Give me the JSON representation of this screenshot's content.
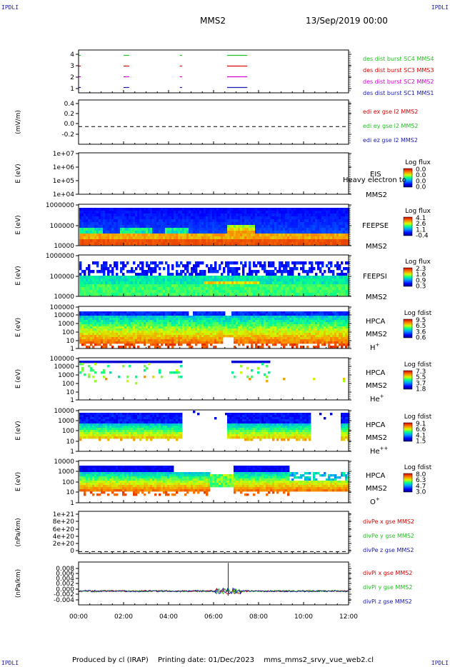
{
  "header": {
    "corner_tl": "IPDLI",
    "corner_tr": "IPDLI",
    "corner_bl": "IPDLI",
    "corner_br": "IPDLI",
    "spacecraft": "MMS2",
    "date": "13/Sep/2019 00:00"
  },
  "footer": {
    "produced": "Produced by cl (IRAP)",
    "printing": "Printing date: 01/Dec/2023",
    "file": "mms_mms2_srvy_vue_web2.cl"
  },
  "colors": {
    "red": "#d80000",
    "green": "#20c020",
    "blue": "#1818b0",
    "magenta": "#d000d0",
    "orange": "#ff5a00"
  },
  "chart_data": [
    {
      "type": "line",
      "panel": "burst",
      "yticks": [
        "4",
        "3",
        "2",
        "1"
      ],
      "ylim": [
        0.5,
        4.5
      ],
      "series": [
        {
          "name": "des dist burst SC1 MMS1",
          "color": "#1818b0",
          "y": 1
        },
        {
          "name": "des dist burst SC2 MMS2",
          "color": "#d000d0",
          "y": 2
        },
        {
          "name": "des dist burst SC3 MMS3",
          "color": "#d80000",
          "y": 3
        },
        {
          "name": "des dist burst SC4 MMS4",
          "color": "#20c020",
          "y": 4
        }
      ],
      "intervals_hours": [
        [
          0.0,
          0.1
        ],
        [
          2.0,
          2.25
        ],
        [
          4.5,
          4.6
        ],
        [
          6.6,
          7.5
        ]
      ]
    },
    {
      "type": "line",
      "panel": "edi",
      "ylabel": "(mV/m)",
      "yticks": [
        "0.4",
        "0.2",
        "0.0",
        "-0.2"
      ],
      "ylim": [
        -0.3,
        0.45
      ],
      "series": [
        {
          "name": "edi ex gse l2 MMS2",
          "color": "#d80000"
        },
        {
          "name": "edi ey gse l2 MMS2",
          "color": "#20c020"
        },
        {
          "name": "edi ez gse l2 MMS2",
          "color": "#1818b0"
        }
      ]
    },
    {
      "type": "heatmap",
      "panel": "eis",
      "ylabel": "E (eV)",
      "yticks": [
        "1e+07",
        "1e+06",
        "1e+05",
        "1e+04"
      ],
      "instrument": "EIS",
      "spacecraft": "MMS2",
      "overlay": "Heavy electron to",
      "cbar_title": "Log flux",
      "cbar_ticks": [
        "0.0",
        "0.0",
        "0.0",
        "0.0"
      ]
    },
    {
      "type": "heatmap",
      "panel": "feepse",
      "ylabel": "E (eV)",
      "yticks": [
        "1000000",
        "100000",
        "10000"
      ],
      "instrument": "FEEPSE",
      "spacecraft": "MMS2",
      "cbar_title": "Log flux",
      "cbar_ticks": [
        "4.1",
        "2.6",
        "1.1",
        "-0.4"
      ]
    },
    {
      "type": "heatmap",
      "panel": "feepsi",
      "ylabel": "E (eV)",
      "yticks": [
        "1000000",
        "100000",
        "10000"
      ],
      "instrument": "FEEPSI",
      "spacecraft": "MMS2",
      "cbar_title": "Log flux",
      "cbar_ticks": [
        "2.3",
        "1.6",
        "0.9",
        "0.3"
      ]
    },
    {
      "type": "heatmap",
      "panel": "hpca_h",
      "ylabel": "E (eV)",
      "yticks": [
        "100000",
        "10000",
        "1000",
        "100",
        "10",
        "1"
      ],
      "instrument": "HPCA",
      "spacecraft": "MMS2",
      "species": "H",
      "species_sup": "+",
      "cbar_title": "Log fdist",
      "cbar_ticks": [
        "9.5",
        "6.5",
        "3.6",
        "0.6"
      ]
    },
    {
      "type": "heatmap",
      "panel": "hpca_he",
      "ylabel": "E (eV)",
      "yticks": [
        "100000",
        "10000",
        "1000",
        "100",
        "10",
        "1"
      ],
      "instrument": "HPCA",
      "spacecraft": "MMS2",
      "species": "He",
      "species_sup": "+",
      "cbar_title": "Log fdist",
      "cbar_ticks": [
        "7.3",
        "5.5",
        "3.7",
        "1.8"
      ]
    },
    {
      "type": "heatmap",
      "panel": "hpca_hepp",
      "ylabel": "E (eV)",
      "yticks": [
        "10000",
        "1000",
        "100",
        "10",
        "1"
      ],
      "instrument": "HPCA",
      "spacecraft": "MMS2",
      "species": "He",
      "species_sup": "++",
      "cbar_title": "Log fdist",
      "cbar_ticks": [
        "9.1",
        "6.6",
        "4.1",
        "1.5"
      ]
    },
    {
      "type": "heatmap",
      "panel": "hpca_o",
      "ylabel": "E (eV)",
      "yticks": [
        "10000",
        "1000",
        "100",
        "10",
        "1"
      ],
      "instrument": "HPCA",
      "spacecraft": "MMS2",
      "species": "O",
      "species_sup": "+",
      "cbar_title": "Log fdist",
      "cbar_ticks": [
        "8.0",
        "6.3",
        "4.7",
        "3.0"
      ]
    },
    {
      "type": "line",
      "panel": "divpe",
      "ylabel": "(nPa/km)",
      "yticks": [
        "1e+21",
        "8e+20",
        "6e+20",
        "4e+20",
        "2e+20",
        "0"
      ],
      "ylim": [
        -5e+19,
        1.1e+21
      ],
      "series": [
        {
          "name": "divPe x gse MMS2",
          "color": "#d80000"
        },
        {
          "name": "divPe y gse MMS2",
          "color": "#20c020"
        },
        {
          "name": "divPe z gse MMS2",
          "color": "#1818b0"
        }
      ]
    },
    {
      "type": "line",
      "panel": "divpi",
      "ylabel": "(nPa/km)",
      "yticks": [
        "0.008",
        "0.006",
        "0.004",
        "0.002",
        "0.000",
        "-0.002",
        "-0.004"
      ],
      "ylim": [
        -0.0045,
        0.0095
      ],
      "series": [
        {
          "name": "divPi x gse MMS2",
          "color": "#d80000"
        },
        {
          "name": "divPi y gse MMS2",
          "color": "#20c020"
        },
        {
          "name": "divPi z gse MMS2",
          "color": "#1818b0"
        }
      ],
      "spike_hour": 6.65
    }
  ],
  "xaxis": {
    "ticks": [
      "00:00",
      "02:00",
      "04:00",
      "06:00",
      "08:00",
      "10:00",
      "12:00"
    ],
    "xlim_hours": [
      0,
      12
    ]
  }
}
